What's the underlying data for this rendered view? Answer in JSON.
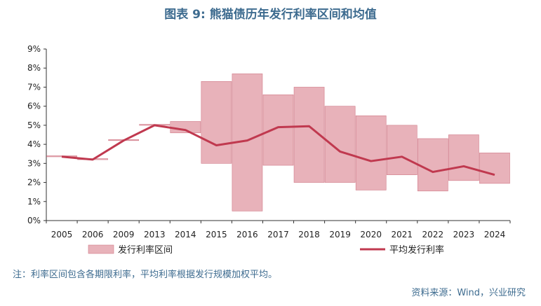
{
  "title": "图表 9: 熊猫债历年发行利率区间和均值",
  "note": "注：利率区间包含各期限利率，平均利率根据发行规模加权平均。",
  "source": "资料来源：Wind，兴业研究",
  "colors": {
    "range_fill": "#e8b2ba",
    "range_stroke": "#d07a88",
    "avg_line": "#c0394f",
    "title": "#3d6b8f"
  },
  "chart_data": {
    "type": "bar",
    "title": "图表 9: 熊猫债历年发行利率区间和均值",
    "categories": [
      "2005",
      "2006",
      "2009",
      "2013",
      "2014",
      "2015",
      "2016",
      "2017",
      "2018",
      "2019",
      "2020",
      "2021",
      "2022",
      "2023",
      "2024"
    ],
    "y_ticks": [
      "0%",
      "1%",
      "2%",
      "3%",
      "4%",
      "5%",
      "6%",
      "7%",
      "8%",
      "9%"
    ],
    "ylim": [
      0,
      9
    ],
    "grid": false,
    "legend_position": "bottom",
    "series": [
      {
        "name": "发行利率区间",
        "type": "floating-bar",
        "low": [
          3.35,
          3.2,
          4.2,
          5.0,
          4.6,
          3.0,
          0.5,
          2.9,
          2.0,
          2.0,
          1.6,
          2.4,
          1.55,
          2.1,
          1.95
        ],
        "high": [
          3.4,
          3.25,
          4.25,
          5.05,
          5.2,
          7.3,
          7.7,
          6.6,
          7.0,
          6.0,
          5.5,
          5.0,
          4.3,
          4.5,
          3.55
        ]
      },
      {
        "name": "平均发行利率",
        "type": "line",
        "values": [
          3.35,
          3.2,
          4.2,
          5.0,
          4.75,
          3.95,
          4.2,
          4.9,
          4.95,
          3.62,
          3.12,
          3.35,
          2.55,
          2.85,
          2.4
        ]
      }
    ]
  }
}
